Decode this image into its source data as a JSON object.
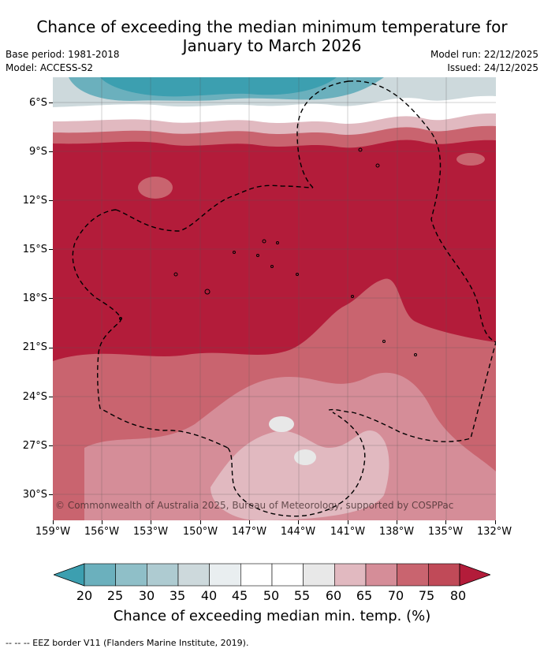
{
  "title_line1": "Chance of exceeding the median minimum temperature for",
  "title_line2": "January to March 2026",
  "base_period": "Base period: 1981-2018",
  "model": "Model: ACCESS-S2",
  "model_run": "Model run: 22/12/2025",
  "issued": "Issued: 24/12/2025",
  "lat_labels": [
    "6°S",
    "9°S",
    "12°S",
    "15°S",
    "18°S",
    "21°S",
    "24°S",
    "27°S",
    "30°S"
  ],
  "lon_labels": [
    "159°W",
    "156°W",
    "153°W",
    "150°W",
    "147°W",
    "144°W",
    "141°W",
    "138°W",
    "135°W",
    "132°W"
  ],
  "copyright": "© Commonwealth of Australia 2025, Bureau of Meteorology, supported by COSPPac",
  "colorbar": {
    "labels": [
      "20",
      "25",
      "30",
      "35",
      "40",
      "45",
      "50",
      "55",
      "60",
      "65",
      "70",
      "75",
      "80"
    ],
    "colors": [
      "#3c9fb0",
      "#6bb0bd",
      "#8fbfc8",
      "#aecbd1",
      "#cdd9dc",
      "#e9eef0",
      "#ffffff",
      "#ffffff",
      "#e8e8e8",
      "#e1b9c0",
      "#d58d98",
      "#c9646f",
      "#c04a58",
      "#b31c3a"
    ],
    "title": "Chance of exceeding median min. temp. (%)"
  },
  "footer": "--  --  -- EEZ border V11 (Flanders Marine Institute, 2019)."
}
